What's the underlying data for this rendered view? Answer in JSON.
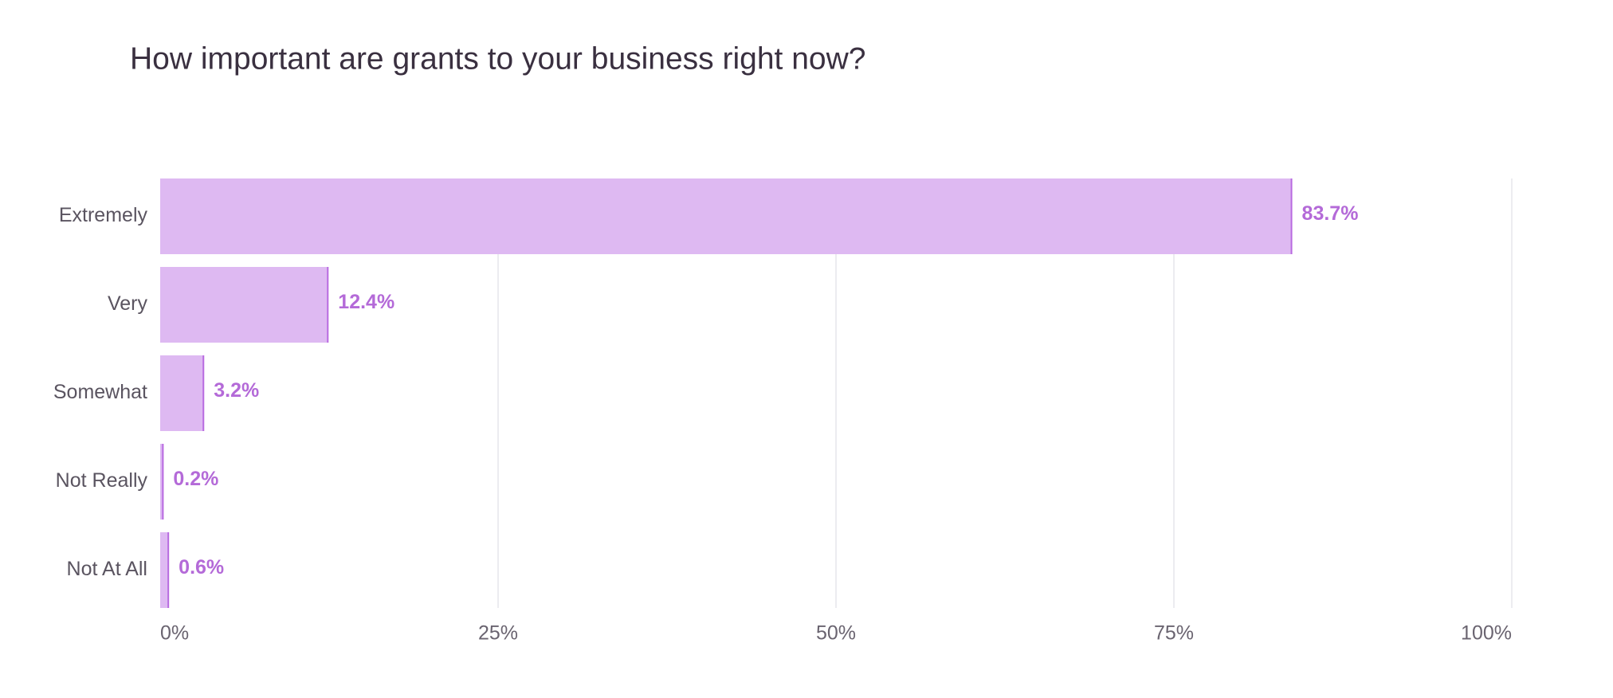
{
  "chart_data": {
    "type": "bar",
    "orientation": "horizontal",
    "title": "How important are grants to your business right now?",
    "categories": [
      "Extremely",
      "Very",
      "Somewhat",
      "Not Really",
      "Not At All"
    ],
    "values": [
      83.7,
      12.4,
      3.2,
      0.2,
      0.6
    ],
    "value_labels": [
      "83.7%",
      "12.4%",
      "3.2%",
      "0.2%",
      "0.6%"
    ],
    "color": "#deb9f2",
    "edge_color": "#b86ae0",
    "label_color": "#b46ad8",
    "xlim": [
      0,
      100
    ],
    "xticks": [
      {
        "value": 0,
        "label": "0%"
      },
      {
        "value": 25,
        "label": "25%"
      },
      {
        "value": 50,
        "label": "50%"
      },
      {
        "value": 75,
        "label": "75%"
      },
      {
        "value": 100,
        "label": "100%"
      }
    ],
    "grid": true
  }
}
